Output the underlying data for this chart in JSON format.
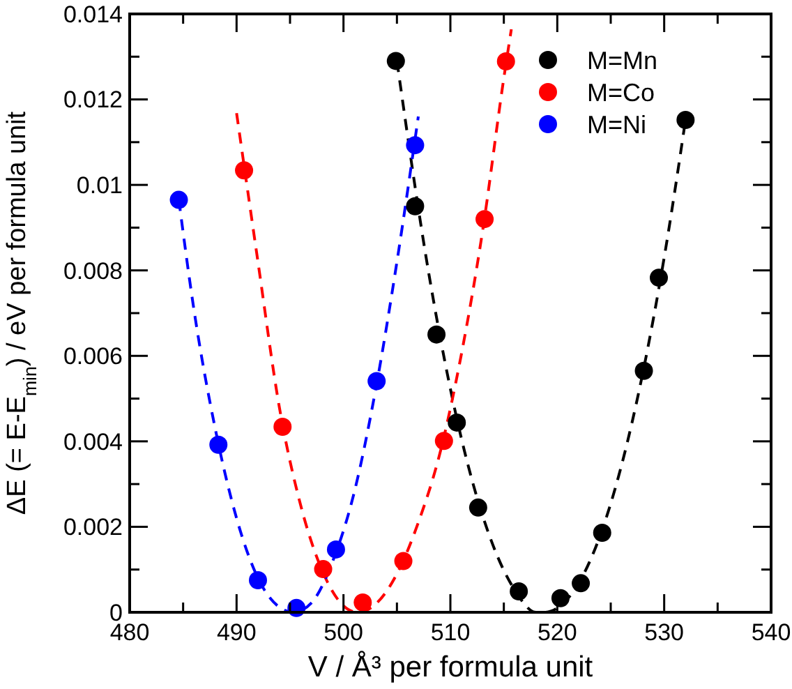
{
  "chart_data": {
    "type": "scatter",
    "xlabel": "V / Å³ per formula unit",
    "ylabel": "ΔE (= E-E$_{min}$) / eV per formula unit",
    "xlim": [
      480,
      540
    ],
    "ylim": [
      0,
      0.014
    ],
    "xticks": [
      480,
      {
        "value": 485,
        "label": null
      },
      490,
      {
        "value": 495,
        "label": null
      },
      500,
      {
        "value": 505,
        "label": null
      },
      510,
      {
        "value": 515,
        "label": null
      },
      520,
      {
        "value": 525,
        "label": null
      },
      530,
      {
        "value": 535,
        "label": null
      },
      540
    ],
    "yticks": [
      0,
      {
        "value": 0.001,
        "label": null
      },
      0.002,
      {
        "value": 0.003,
        "label": null
      },
      0.004,
      {
        "value": 0.005,
        "label": null
      },
      0.006,
      {
        "value": 0.007,
        "label": null
      },
      0.008,
      {
        "value": 0.009,
        "label": null
      },
      0.01,
      {
        "value": 0.011,
        "label": null
      },
      0.012,
      {
        "value": 0.013,
        "label": null
      },
      0.014
    ],
    "legend": "top right",
    "grid": false,
    "marker": "circle",
    "series": [
      {
        "name": "M=Mn",
        "color": "#000000",
        "x": [
          504.9,
          506.7,
          508.7,
          510.6,
          512.6,
          516.4,
          520.3,
          522.2,
          524.2,
          528.1,
          529.5,
          532.0
        ],
        "values": [
          0.0129,
          0.0095,
          0.0065,
          0.00444,
          0.00245,
          0.00049,
          0.00033,
          0.00068,
          0.00186,
          0.00565,
          0.00783,
          0.01152
        ]
      },
      {
        "name": "M=Co",
        "color": "#ff0000",
        "x": [
          490.7,
          494.3,
          498.1,
          501.8,
          505.6,
          509.4,
          513.2,
          515.2
        ],
        "values": [
          0.01034,
          0.00434,
          0.00101,
          0.00023,
          0.0012,
          0.00401,
          0.0092,
          0.01289
        ]
      },
      {
        "name": "M=Ni",
        "color": "#0000ff",
        "x": [
          484.6,
          488.3,
          492.0,
          495.6,
          499.3,
          503.1,
          506.7
        ],
        "values": [
          0.00965,
          0.00392,
          0.00075,
          0.0001,
          0.00147,
          0.00541,
          0.01093
        ]
      },
      {
        "type": "line",
        "color": "#000000",
        "line_style": "dashed",
        "marker": "none",
        "x": [
          505,
          508,
          511,
          514,
          516,
          518,
          518.8,
          520,
          522,
          524,
          526,
          528,
          530,
          532
        ],
        "values": [
          0.0129,
          0.0079,
          0.0041,
          0.00156,
          0.00053,
          0,
          0,
          0.0001,
          0.00068,
          0.00179,
          0.00343,
          0.0056,
          0.0083,
          0.01153
        ]
      },
      {
        "type": "line",
        "color": "#ff0000",
        "line_style": "dashed",
        "marker": "none",
        "x": [
          490,
          492,
          494,
          496,
          498,
          500,
          501.3,
          503,
          505,
          507,
          509,
          511,
          513,
          515,
          515.7
        ],
        "values": [
          0.01168,
          0.0082,
          0.0048,
          0.0025,
          0.00098,
          0.00015,
          0,
          0.00019,
          0.0009,
          0.0021,
          0.0037,
          0.006,
          0.0089,
          0.0125,
          0.01364
        ]
      },
      {
        "type": "line",
        "color": "#0000ff",
        "line_style": "dashed",
        "marker": "none",
        "x": [
          484.6,
          486,
          488,
          490,
          492,
          494,
          495.3,
          497,
          499,
          501,
          503,
          505,
          507
        ],
        "values": [
          0.00965,
          0.0071,
          0.0043,
          0.0022,
          0.0008,
          0.00012,
          0,
          0.00022,
          0.0012,
          0.0028,
          0.0052,
          0.0082,
          0.0116
        ]
      }
    ]
  }
}
